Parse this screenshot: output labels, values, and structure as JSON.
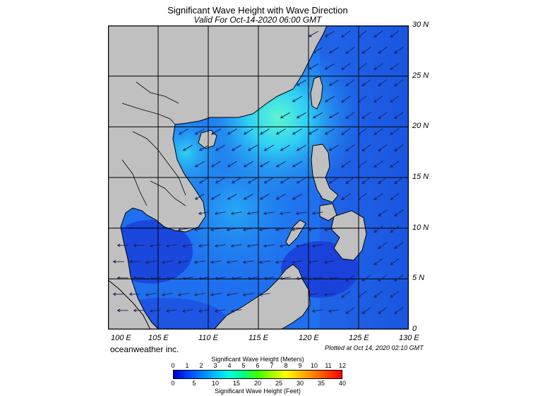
{
  "title": "Significant Wave Height with Wave Direction",
  "subtitle": "Valid For Oct-14-2020 06:00 GMT",
  "credit": "oceanweather inc.",
  "plotted": "Plotted at Oct 14, 2020 02:10 GMT",
  "map": {
    "lon_min": 100,
    "lon_max": 130,
    "lat_min": 0,
    "lat_max": 30,
    "lat_labels": [
      "30 N",
      "25 N",
      "20 N",
      "15 N",
      "10 N",
      "5 N",
      "0"
    ],
    "lon_labels": [
      "100 E",
      "105 E",
      "110 E",
      "115 E",
      "120 E",
      "125 E",
      "130 E"
    ],
    "colors": {
      "land": "#c0c0c0",
      "ocean_deep": "#1a3fd8",
      "ocean_mid": "#1f7cf0",
      "ocean_high": "#2fd0f5",
      "ocean_peak": "#5cf7d0",
      "arrow": "#1a1f5a",
      "grid": "#000000"
    }
  },
  "colorbar": {
    "title_meters": "Significant Wave Height (Meters)",
    "title_feet": "Significant Wave Height (Feet)",
    "meters_ticks": [
      "0",
      "1",
      "2",
      "3",
      "4",
      "5",
      "6",
      "7",
      "8",
      "9",
      "10",
      "11",
      "12"
    ],
    "feet_ticks": [
      "0",
      "5",
      "10",
      "15",
      "20",
      "25",
      "30",
      "35",
      "40"
    ],
    "colors": [
      "#0000c8",
      "#0040ff",
      "#0080ff",
      "#00c0ff",
      "#00ffe0",
      "#00ff80",
      "#40ff00",
      "#a0ff00",
      "#ffff00",
      "#ffc000",
      "#ff8000",
      "#ff4000",
      "#ff0000"
    ]
  }
}
